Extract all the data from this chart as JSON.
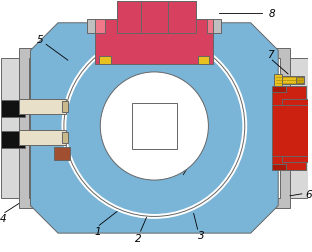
{
  "fig_width": 3.12,
  "fig_height": 2.53,
  "dpi": 100,
  "bg_color": "#ffffff",
  "blue_body": "#7ab5d8",
  "gray_side": "#c0c0c0",
  "gray_light": "#d8d8d8",
  "black_bar": "#111111",
  "cream_bar": "#e8e0c8",
  "pink_dark": "#d84060",
  "pink_light": "#f07888",
  "yellow_acc": "#e8c020",
  "red_conn": "#cc2010",
  "outline": "#666666",
  "arrow_color": "#222222",
  "label_color": "#000000"
}
